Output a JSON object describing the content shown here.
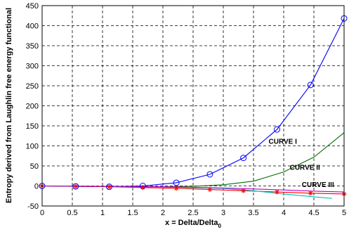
{
  "chart_data": {
    "type": "line",
    "title": "",
    "xlabel": "x = Delta/Delta",
    "xlabel_sub": "0",
    "ylabel": "Entropy derived from Laughlin free energy functional",
    "xlim": [
      0,
      5
    ],
    "ylim": [
      -50,
      450
    ],
    "xticks": [
      0,
      0.5,
      1,
      1.5,
      2,
      2.5,
      3,
      3.5,
      4,
      4.5,
      5
    ],
    "yticks": [
      -50,
      0,
      50,
      100,
      150,
      200,
      250,
      300,
      350,
      400,
      450
    ],
    "grid": true,
    "series": [
      {
        "color": "#0000ff",
        "marker": "circle",
        "x": [
          0,
          0.556,
          1.111,
          1.667,
          2.222,
          2.778,
          3.333,
          3.889,
          4.444,
          5.0
        ],
        "y": [
          0,
          -1,
          -2,
          0,
          8,
          29,
          70,
          141,
          252,
          418
        ]
      },
      {
        "color": "#007000",
        "marker": "none",
        "x": [
          0,
          0.5,
          1.0,
          1.5,
          2.0,
          2.5,
          3.0,
          3.5,
          4.0,
          4.5,
          5.0
        ],
        "y": [
          0,
          -1,
          -1,
          -2,
          -2,
          -1,
          3,
          12,
          35,
          72,
          133
        ]
      },
      {
        "color": "#ff0000",
        "marker": "star",
        "x": [
          0,
          0.556,
          1.111,
          1.667,
          2.222,
          2.778,
          3.333,
          3.889,
          4.444,
          5.0
        ],
        "y": [
          0,
          -1,
          -2,
          -4,
          -6,
          -9,
          -12,
          -15,
          -18,
          -20
        ]
      },
      {
        "color": "#00bfbf",
        "marker": "none",
        "x": [
          0,
          1.0,
          2.0,
          3.0,
          3.5,
          4.0,
          4.5,
          4.8
        ],
        "y": [
          0,
          -1,
          -3,
          -6,
          -12,
          -20,
          -27,
          -31
        ]
      },
      {
        "color": "#bf00bf",
        "marker": "none",
        "x": [
          0,
          1.0,
          2.0,
          3.0,
          4.0,
          4.5,
          5.0
        ],
        "y": [
          0,
          -1,
          -2,
          -5,
          -10,
          -13,
          -15
        ]
      }
    ],
    "annotations": [
      {
        "text": "CURVE I",
        "x": 3.75,
        "y": 105
      },
      {
        "text": "CURVE II",
        "x": 4.1,
        "y": 40
      },
      {
        "text": "CURVE III",
        "x": 4.3,
        "y": -3
      }
    ]
  }
}
